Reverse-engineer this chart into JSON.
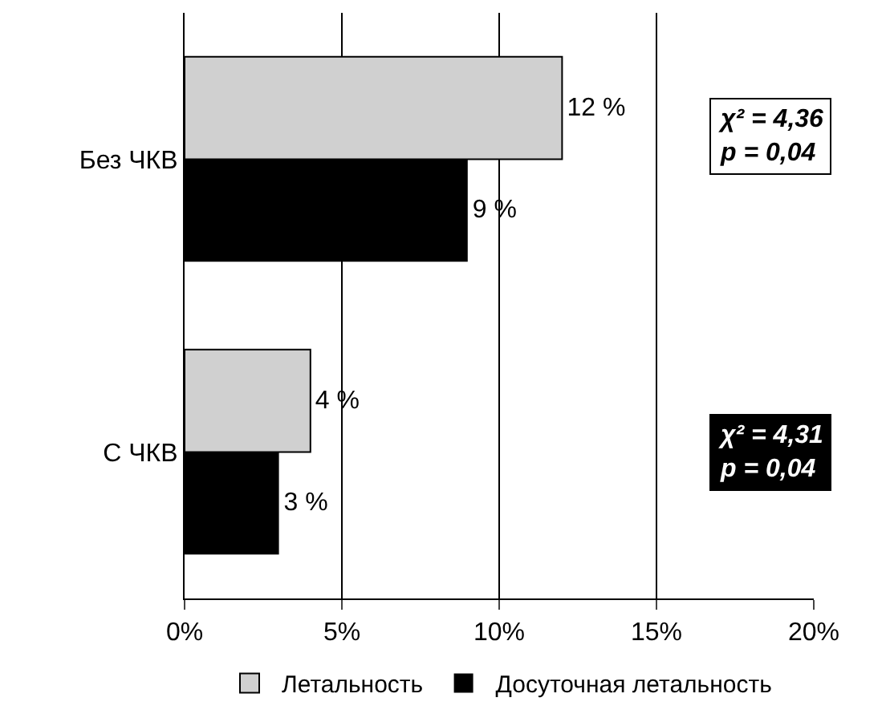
{
  "chart_data": {
    "type": "bar",
    "orientation": "horizontal",
    "categories": [
      "Без ЧКВ",
      "С ЧКВ"
    ],
    "series": [
      {
        "name": "Летальность",
        "color": "#d0d0d0",
        "values": [
          12,
          4
        ],
        "value_labels": [
          "12 %",
          "4 %"
        ]
      },
      {
        "name": "Досуточная летальность",
        "color": "#000000",
        "values": [
          9,
          3
        ],
        "value_labels": [
          "9 %",
          "3 %"
        ]
      }
    ],
    "xlim": [
      0,
      20
    ],
    "xticks": [
      {
        "value": 0,
        "label": "0%"
      },
      {
        "value": 5,
        "label": "5%"
      },
      {
        "value": 10,
        "label": "10%"
      },
      {
        "value": 15,
        "label": "15%"
      },
      {
        "value": 20,
        "label": "20%"
      }
    ],
    "grid": "x",
    "legend": "bottom",
    "annotations": [
      "χ² = 4,36\np = 0,04",
      "χ² = 4,31\np = 0,04"
    ]
  }
}
